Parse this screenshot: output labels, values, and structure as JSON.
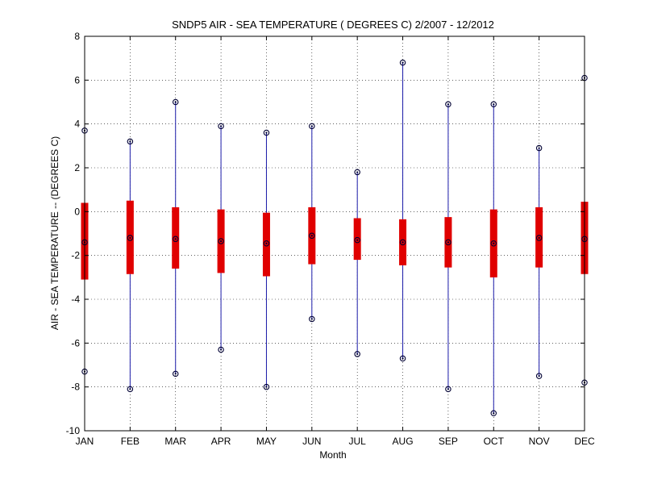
{
  "chart_data": {
    "type": "boxplot",
    "title": "SNDP5  AIR - SEA TEMPERATURE ( DEGREES C) 2/2007 - 12/2012",
    "xlabel": "Month",
    "ylabel": "AIR - SEA TEMPERATURE -- (DEGREES C)",
    "ylim": [
      -10,
      8
    ],
    "yticks": [
      -10,
      -8,
      -6,
      -4,
      -2,
      0,
      2,
      4,
      6,
      8
    ],
    "grid": true,
    "categories": [
      "JAN",
      "FEB",
      "MAR",
      "APR",
      "MAY",
      "JUN",
      "JUL",
      "AUG",
      "SEP",
      "OCT",
      "NOV",
      "DEC"
    ],
    "series": [
      {
        "min": -7.3,
        "q1": -3.1,
        "median": -1.4,
        "q3": 0.4,
        "max": 3.7
      },
      {
        "min": -8.1,
        "q1": -2.85,
        "median": -1.2,
        "q3": 0.5,
        "max": 3.2
      },
      {
        "min": -7.4,
        "q1": -2.6,
        "median": -1.25,
        "q3": 0.2,
        "max": 5.0
      },
      {
        "min": -6.3,
        "q1": -2.8,
        "median": -1.35,
        "q3": 0.1,
        "max": 3.9
      },
      {
        "min": -8.0,
        "q1": -2.95,
        "median": -1.45,
        "q3": -0.05,
        "max": 3.6
      },
      {
        "min": -4.9,
        "q1": -2.4,
        "median": -1.1,
        "q3": 0.2,
        "max": 3.9
      },
      {
        "min": -6.5,
        "q1": -2.2,
        "median": -1.3,
        "q3": -0.3,
        "max": 1.8
      },
      {
        "min": -6.7,
        "q1": -2.45,
        "median": -1.4,
        "q3": -0.35,
        "max": 6.8
      },
      {
        "min": -8.1,
        "q1": -2.55,
        "median": -1.4,
        "q3": -0.25,
        "max": 4.9
      },
      {
        "min": -9.2,
        "q1": -3.0,
        "median": -1.45,
        "q3": 0.1,
        "max": 4.9
      },
      {
        "min": -7.5,
        "q1": -2.55,
        "median": -1.2,
        "q3": 0.2,
        "max": 2.9
      },
      {
        "min": -7.8,
        "q1": -2.85,
        "median": -1.25,
        "q3": 0.45,
        "max": 6.1
      }
    ],
    "colors": {
      "whisker": "#1a1aa8",
      "box": "#e00000",
      "marker": "#000033",
      "grid": "#000000"
    }
  }
}
